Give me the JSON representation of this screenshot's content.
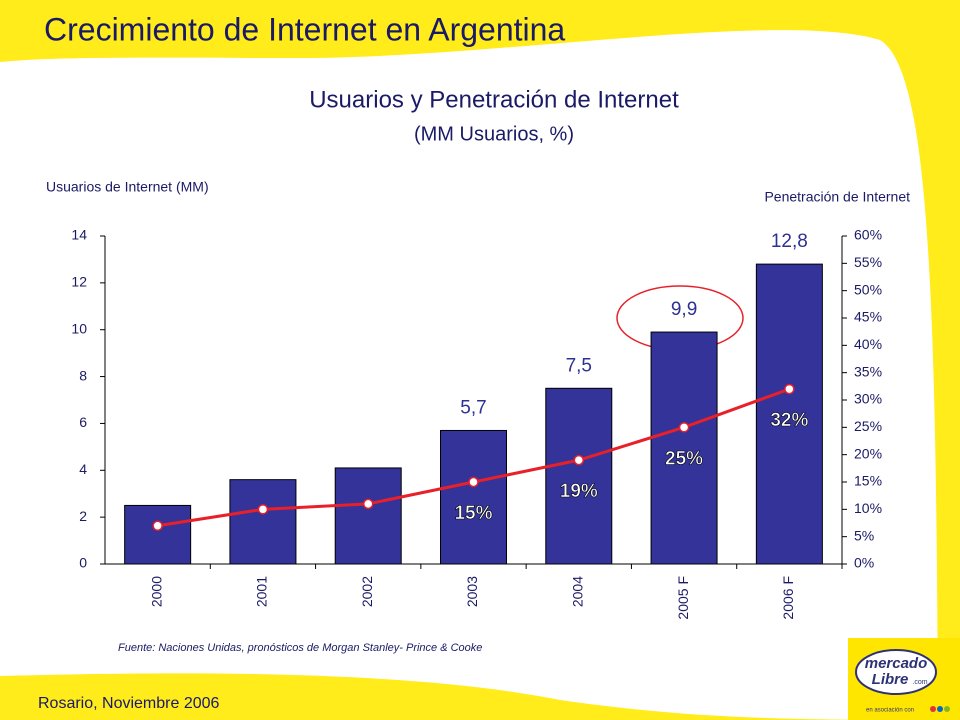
{
  "slide": {
    "title": "Crecimiento de Internet en Argentina",
    "footer": "Rosario, Noviembre 2006",
    "logo": {
      "line1": "mercado",
      "line2": "Libre",
      "suffix": ".com",
      "tagline": "en asociación con"
    }
  },
  "chart_data": {
    "type": "bar",
    "title": "Usuarios y Penetración de Internet",
    "subtitle": "(MM Usuarios, %)",
    "y_label": "Usuarios de Internet (MM)",
    "y2_label": "Penetración de Internet",
    "source": "Fuente: Naciones Unidas, pronósticos de Morgan Stanley- Prince & Cooke",
    "categories": [
      "2000",
      "2001",
      "2002",
      "2003",
      "2004",
      "2005 F",
      "2006 F"
    ],
    "series": [
      {
        "name": "Usuarios de Internet (MM)",
        "type": "bar",
        "color": "#333399",
        "values": [
          2.5,
          3.6,
          4.1,
          5.7,
          7.5,
          9.9,
          12.8
        ],
        "value_labels": [
          null,
          null,
          null,
          "5,7",
          "7,5",
          "9,9",
          "12,8"
        ]
      },
      {
        "name": "Penetración de Internet",
        "type": "line",
        "axis": "y2",
        "color": "#e8202a",
        "values": [
          7,
          10,
          11,
          15,
          19,
          25,
          32
        ],
        "value_labels": [
          null,
          null,
          null,
          "15%",
          "19%",
          "25%",
          "32%"
        ]
      }
    ],
    "ylim": [
      0,
      14
    ],
    "yticks": [
      0,
      2,
      4,
      6,
      8,
      10,
      12,
      14
    ],
    "y2lim": [
      0,
      60
    ],
    "y2ticks": [
      {
        "value": 0,
        "label": "0%"
      },
      {
        "value": 5,
        "label": "5%"
      },
      {
        "value": 10,
        "label": "10%"
      },
      {
        "value": 15,
        "label": "15%"
      },
      {
        "value": 20,
        "label": "20%"
      },
      {
        "value": 25,
        "label": "25%"
      },
      {
        "value": 30,
        "label": "30%"
      },
      {
        "value": 35,
        "label": "35%"
      },
      {
        "value": 40,
        "label": "40%"
      },
      {
        "value": 45,
        "label": "45%"
      },
      {
        "value": 50,
        "label": "50%"
      },
      {
        "value": 55,
        "label": "55%"
      },
      {
        "value": 60,
        "label": "60%"
      }
    ],
    "grid": false
  }
}
